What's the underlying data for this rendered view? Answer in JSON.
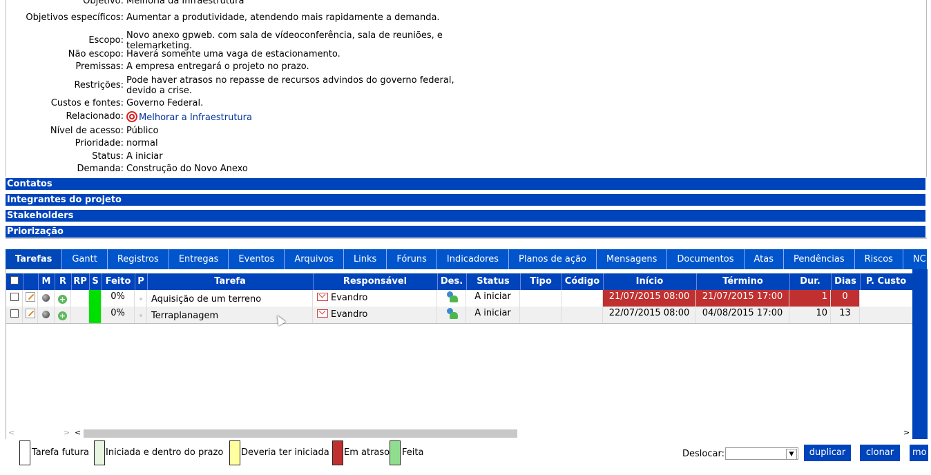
{
  "details": {
    "rows": [
      {
        "label": "Objetivo:",
        "value": "Melhoria da Infraestrutura"
      },
      {
        "label": "Objetivos específicos:",
        "value": "Aumentar a produtividade, atendendo mais rapidamente a demanda."
      },
      {
        "label": "Escopo:",
        "value": "Novo anexo gpweb. com sala de vídeoconferência, sala de reuniões, e telemarketing."
      },
      {
        "label": "Não escopo:",
        "value": "Haverá somente uma vaga de estacionamento."
      },
      {
        "label": "Premissas:",
        "value": "A empresa entregará o projeto no prazo."
      },
      {
        "label": "Restrições:",
        "value": "Pode haver atrasos no repasse de recursos advindos do governo federal, devido a crise."
      },
      {
        "label": "Custos e fontes:",
        "value": "Governo Federal."
      },
      {
        "label": "Relacionado:",
        "value": "Melhorar a Infraestrutura"
      },
      {
        "label": "Nível de acesso:",
        "value": "Público"
      },
      {
        "label": "Prioridade:",
        "value": "normal"
      },
      {
        "label": "Status:",
        "value": "A iniciar"
      },
      {
        "label": "Demanda:",
        "value": "Construção do Novo Anexo"
      }
    ]
  },
  "sections": [
    "Contatos",
    "Integrantes do projeto",
    "Stakeholders",
    "Priorização"
  ],
  "tabs": [
    "Tarefas",
    "Gantt",
    "Registros",
    "Entregas",
    "Eventos",
    "Arquivos",
    "Links",
    "Fóruns",
    "Indicadores",
    "Planos de ação",
    "Mensagens",
    "Documentos",
    "Atas",
    "Pendências",
    "Riscos",
    "NC"
  ],
  "grid": {
    "headers": [
      "M",
      "R",
      "RP",
      "S",
      "Feito",
      "P",
      "Tarefa",
      "Responsável",
      "Des.",
      "Status",
      "Tipo",
      "Código",
      "Início",
      "Término",
      "Dur.",
      "Dias",
      "P. Custo"
    ],
    "rows": [
      {
        "feito": "0%",
        "tarefa": "Aquisição de um terreno",
        "responsavel": "Evandro",
        "status": "A iniciar",
        "inicio": "21/07/2015 08:00",
        "termino": "21/07/2015 17:00",
        "dur": "1",
        "dias": "0"
      },
      {
        "feito": "0%",
        "tarefa": "Terraplanagem",
        "responsavel": "Evandro",
        "status": "A iniciar",
        "inicio": "22/07/2015 08:00",
        "termino": "04/08/2015 17:00",
        "dur": "10",
        "dias": "13"
      }
    ]
  },
  "legend": [
    "Tarefa futura",
    "Iniciada e dentro do prazo",
    "Deveria ter iniciada",
    "Em atraso",
    "Feita"
  ],
  "legend_colors": [
    "#ffffff",
    "#e8f5e0",
    "#ffffa0",
    "#c03030",
    "#90dd90"
  ],
  "footer": {
    "deslocar_label": "Deslocar:",
    "duplicar": "duplicar",
    "clonar": "clonar",
    "mover": "mo"
  },
  "colors": {
    "accent": "#0044bb",
    "late": "#c03030",
    "done": "#00e000"
  }
}
